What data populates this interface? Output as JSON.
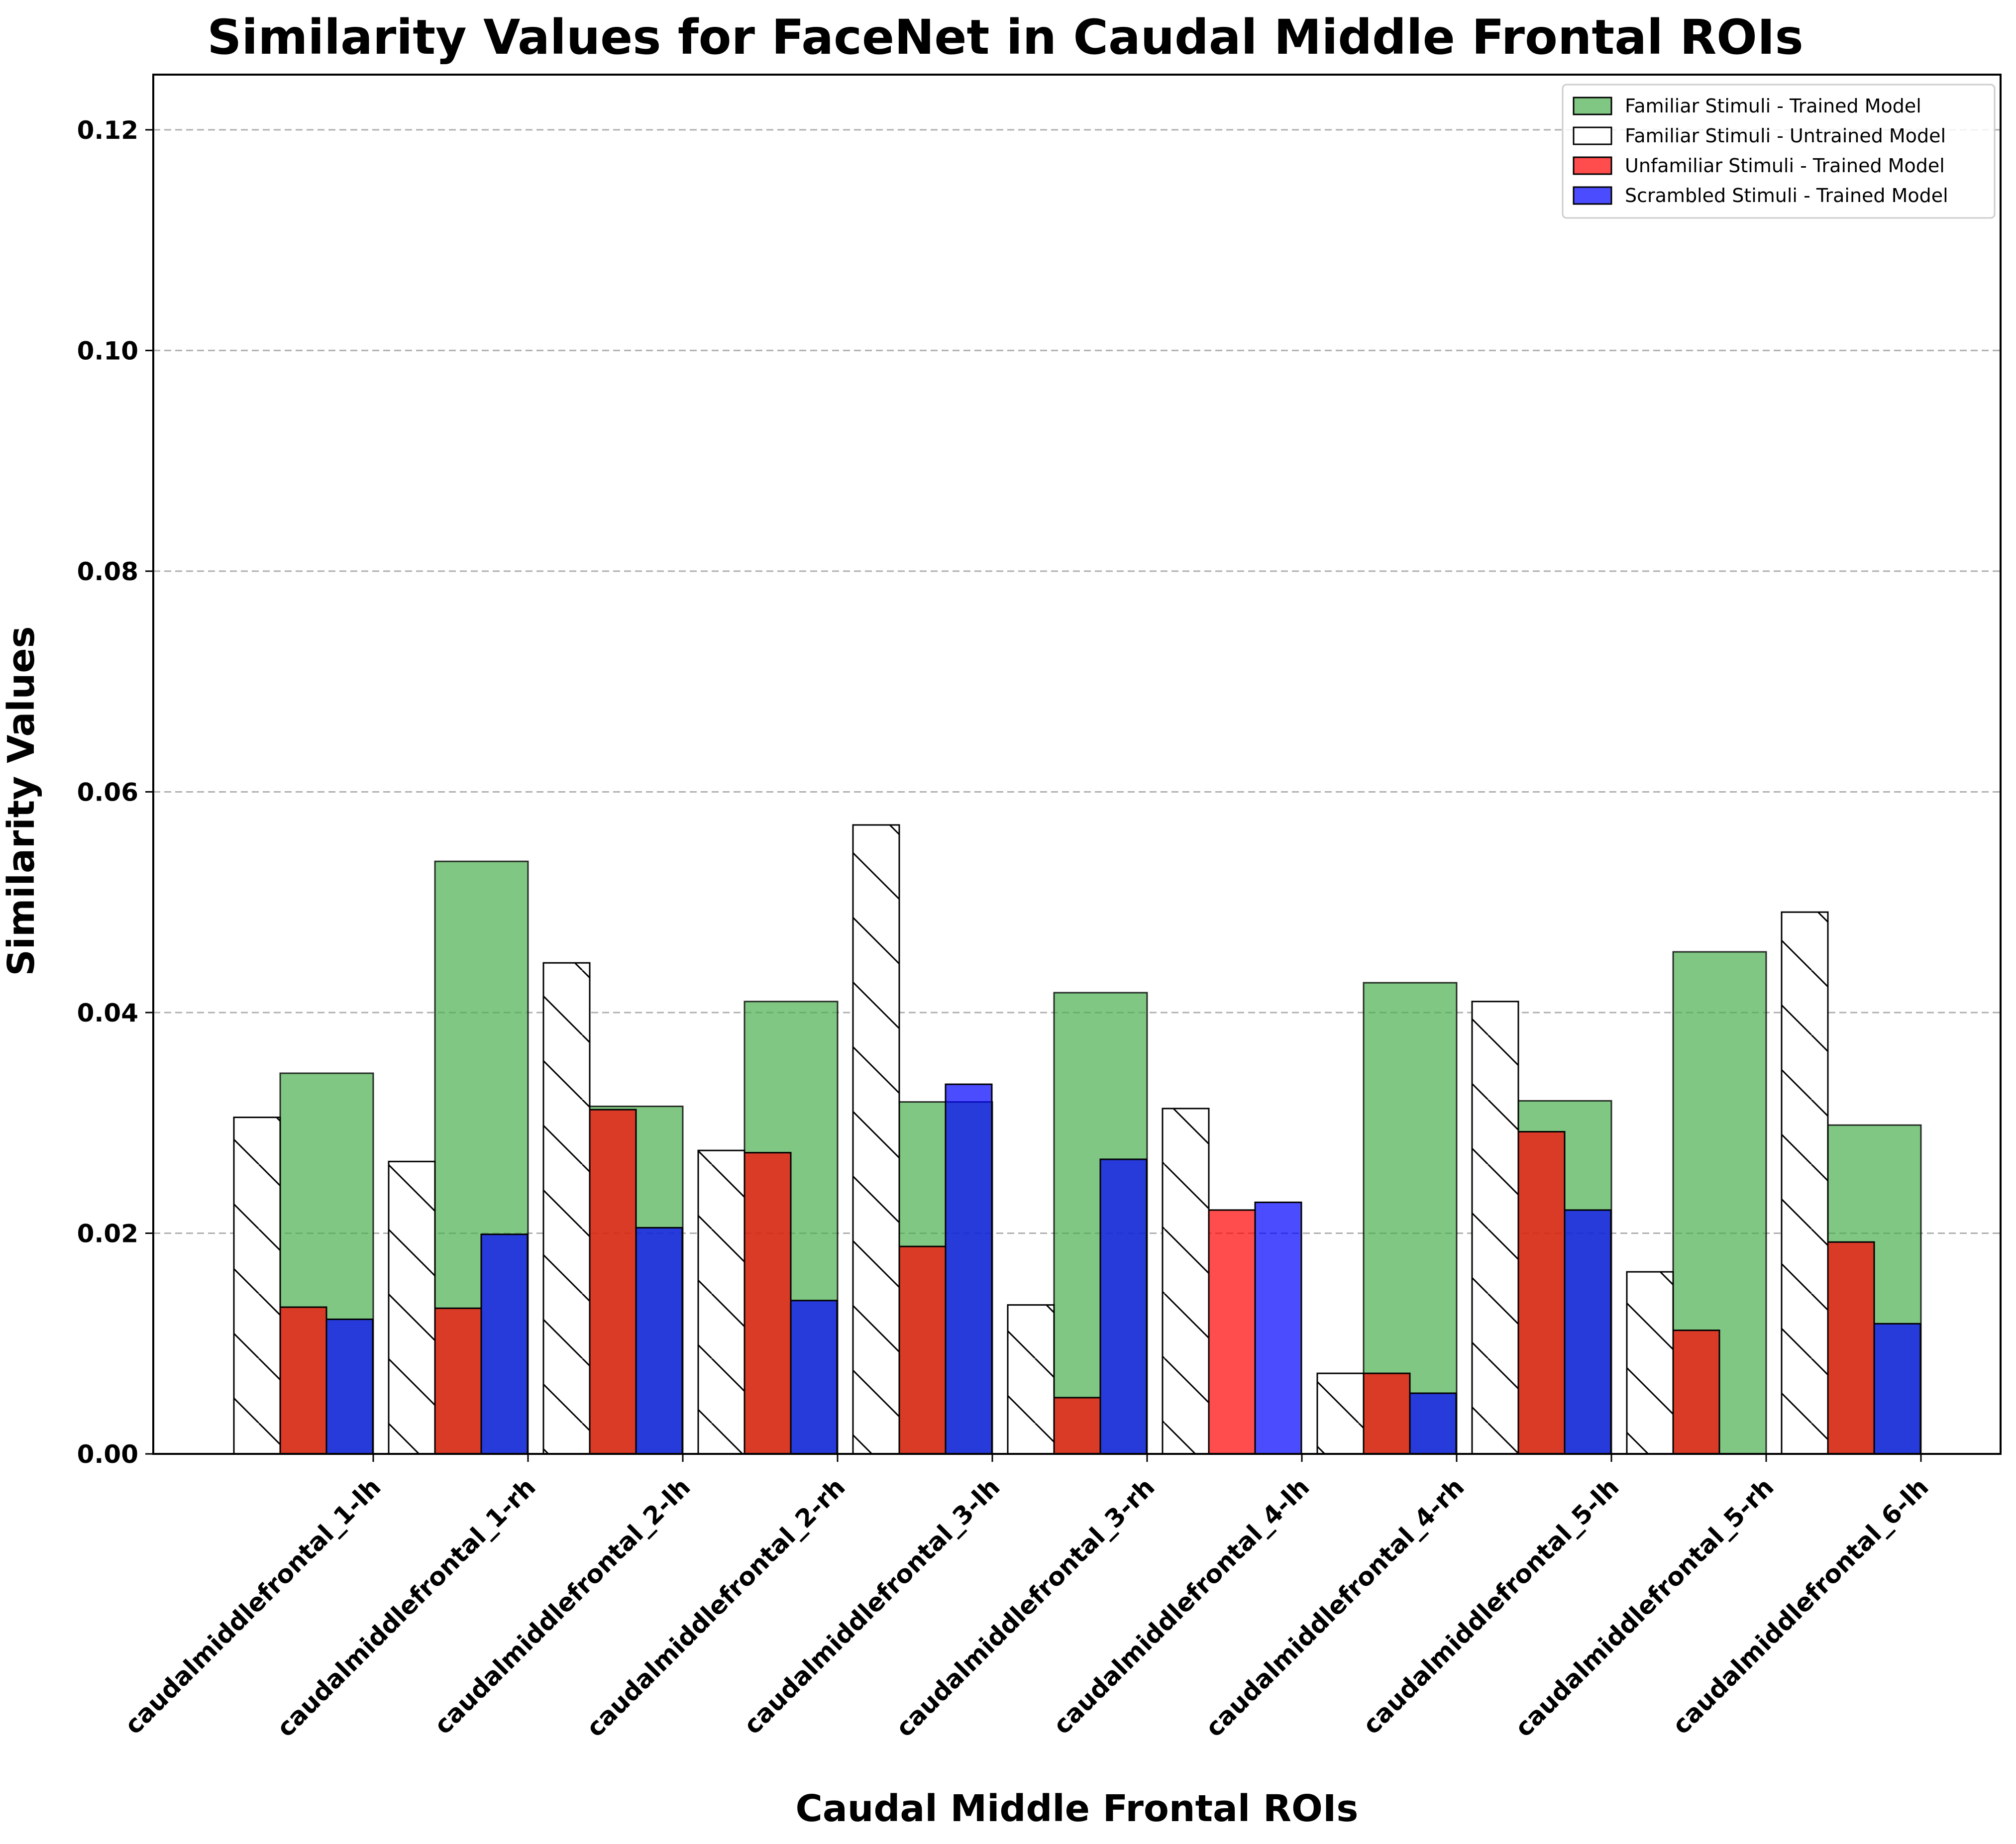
{
  "chart_data": {
    "type": "bar",
    "title": "Similarity Values for FaceNet in Caudal Middle Frontal ROIs",
    "xlabel": "Caudal Middle Frontal ROIs",
    "ylabel": "Similarity Values",
    "ylim": [
      0,
      0.125
    ],
    "yticks": [
      "0.00",
      "0.02",
      "0.04",
      "0.06",
      "0.08",
      "0.10",
      "0.12"
    ],
    "ytick_values": [
      0,
      0.02,
      0.04,
      0.06,
      0.08,
      0.1,
      0.12
    ],
    "grid": "y-dashed",
    "legend_position": "top-right",
    "categories": [
      "caudalmiddlefrontal_1-lh",
      "caudalmiddlefrontal_1-rh",
      "caudalmiddlefrontal_2-lh",
      "caudalmiddlefrontal_2-rh",
      "caudalmiddlefrontal_3-lh",
      "caudalmiddlefrontal_3-rh",
      "caudalmiddlefrontal_4-lh",
      "caudalmiddlefrontal_4-rh",
      "caudalmiddlefrontal_5-lh",
      "caudalmiddlefrontal_5-rh",
      "caudalmiddlefrontal_6-lh"
    ],
    "series": [
      {
        "name": "Familiar Stimuli - Trained Model",
        "color": "#4caf50",
        "opacity": 0.7,
        "hatch": false,
        "values": [
          0.0345,
          0.0537,
          0.0315,
          0.041,
          0.0319,
          0.0418,
          0.0,
          0.0427,
          0.032,
          0.0455,
          0.0298
        ]
      },
      {
        "name": "Familiar Stimuli - Untrained Model",
        "color": "#ffffff",
        "opacity": 1,
        "hatch": true,
        "values": [
          0.0305,
          0.0265,
          0.0445,
          0.0275,
          0.057,
          0.0135,
          0.0313,
          0.0073,
          0.041,
          0.0165,
          0.0491
        ]
      },
      {
        "name": "Unfamiliar Stimuli - Trained Model",
        "color": "#ff0000",
        "opacity": 0.7,
        "hatch": false,
        "values": [
          0.0133,
          0.0132,
          0.0312,
          0.0273,
          0.0188,
          0.0051,
          0.0221,
          0.0073,
          0.0292,
          0.0112,
          0.0192
        ]
      },
      {
        "name": "Scrambled Stimuli - Trained Model",
        "color": "#0000ff",
        "opacity": 0.7,
        "hatch": false,
        "values": [
          0.0122,
          0.0199,
          0.0205,
          0.0139,
          0.0335,
          0.0267,
          0.0228,
          0.0055,
          0.0221,
          0.0,
          0.0118
        ]
      }
    ]
  }
}
